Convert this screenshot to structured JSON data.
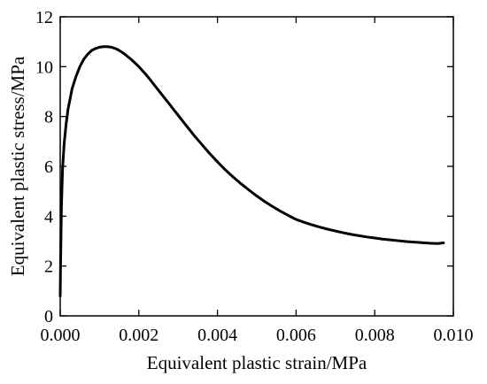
{
  "chart_data": {
    "type": "line",
    "title": "",
    "xlabel": "Equivalent plastic strain/MPa",
    "ylabel": "Equivalent plastic stress/MPa",
    "xlim": [
      0,
      0.01
    ],
    "ylim": [
      0,
      12
    ],
    "xticks": [
      "0.000",
      "0.002",
      "0.004",
      "0.006",
      "0.008",
      "0.010"
    ],
    "yticks": [
      "0",
      "2",
      "4",
      "6",
      "8",
      "10",
      "12"
    ],
    "grid": false,
    "series": [
      {
        "color": "#000000",
        "x": [
          0,
          1e-05,
          3e-05,
          6e-05,
          0.0001,
          0.00015,
          0.0002,
          0.0003,
          0.0004,
          0.0005,
          0.0006,
          0.0007,
          0.0008,
          0.0009,
          0.001,
          0.0011,
          0.0012,
          0.0013,
          0.0014,
          0.0015,
          0.0016,
          0.0018,
          0.002,
          0.0022,
          0.0024,
          0.0026,
          0.0028,
          0.003,
          0.0032,
          0.0034,
          0.0036,
          0.0038,
          0.004,
          0.0042,
          0.0044,
          0.0046,
          0.0048,
          0.005,
          0.0052,
          0.0054,
          0.0056,
          0.0058,
          0.006,
          0.0062,
          0.0064,
          0.0066,
          0.0068,
          0.007,
          0.0072,
          0.0074,
          0.0076,
          0.0078,
          0.008,
          0.0082,
          0.0084,
          0.0086,
          0.0088,
          0.009,
          0.0092,
          0.0094,
          0.0096,
          0.00975
        ],
        "y": [
          0.8,
          2.2,
          4.3,
          5.9,
          6.9,
          7.7,
          8.3,
          9.1,
          9.6,
          10.0,
          10.3,
          10.5,
          10.65,
          10.73,
          10.78,
          10.8,
          10.8,
          10.78,
          10.73,
          10.65,
          10.55,
          10.3,
          10.0,
          9.65,
          9.25,
          8.85,
          8.45,
          8.05,
          7.65,
          7.25,
          6.88,
          6.52,
          6.18,
          5.86,
          5.57,
          5.3,
          5.05,
          4.81,
          4.59,
          4.39,
          4.2,
          4.03,
          3.87,
          3.72,
          3.58,
          3.45,
          3.33,
          3.22,
          3.11,
          3.01,
          2.92,
          2.83,
          2.75,
          2.67,
          2.6,
          2.53,
          2.46,
          2.4,
          2.34,
          2.28,
          2.23,
          2.93
        ]
      }
    ]
  }
}
